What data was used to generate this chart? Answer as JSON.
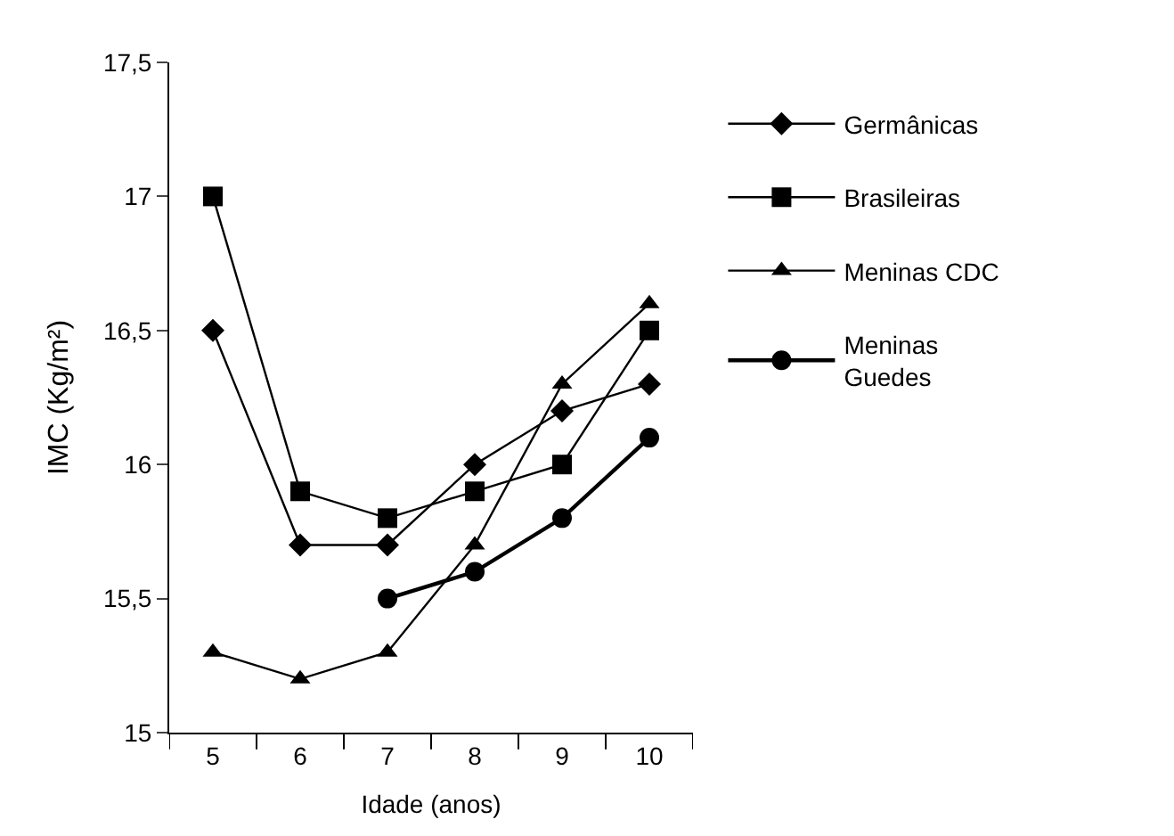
{
  "chart_data": {
    "type": "line",
    "xlabel": "Idade (anos)",
    "ylabel": "IMC (Kg/m²)",
    "categories": [
      "5",
      "6",
      "7",
      "8",
      "9",
      "10"
    ],
    "series": [
      {
        "name": "Germânicas",
        "color": "#000000",
        "marker": "diamond",
        "values": [
          16.5,
          15.7,
          15.7,
          16.0,
          16.2,
          16.3
        ]
      },
      {
        "name": "Brasileiras",
        "color": "#000000",
        "marker": "square",
        "values": [
          17.0,
          15.9,
          15.8,
          15.9,
          16.0,
          16.5
        ]
      },
      {
        "name": "Meninas CDC",
        "color": "#000000",
        "marker": "triangle",
        "values": [
          15.3,
          15.2,
          15.3,
          15.7,
          16.3,
          16.6
        ]
      },
      {
        "name": "Meninas Guedes",
        "color": "#000000",
        "marker": "circle",
        "values": [
          null,
          null,
          15.5,
          15.6,
          15.8,
          16.1
        ]
      }
    ],
    "ylim": [
      15,
      17.5
    ],
    "yticks": [
      {
        "value": 15,
        "label": "15"
      },
      {
        "value": 15.5,
        "label": "15,5"
      },
      {
        "value": 16,
        "label": "16"
      },
      {
        "value": 16.5,
        "label": "16,5"
      },
      {
        "value": 17,
        "label": "17"
      },
      {
        "value": 17.5,
        "label": "17,5"
      }
    ],
    "legend": "right",
    "line_style": "solid"
  }
}
